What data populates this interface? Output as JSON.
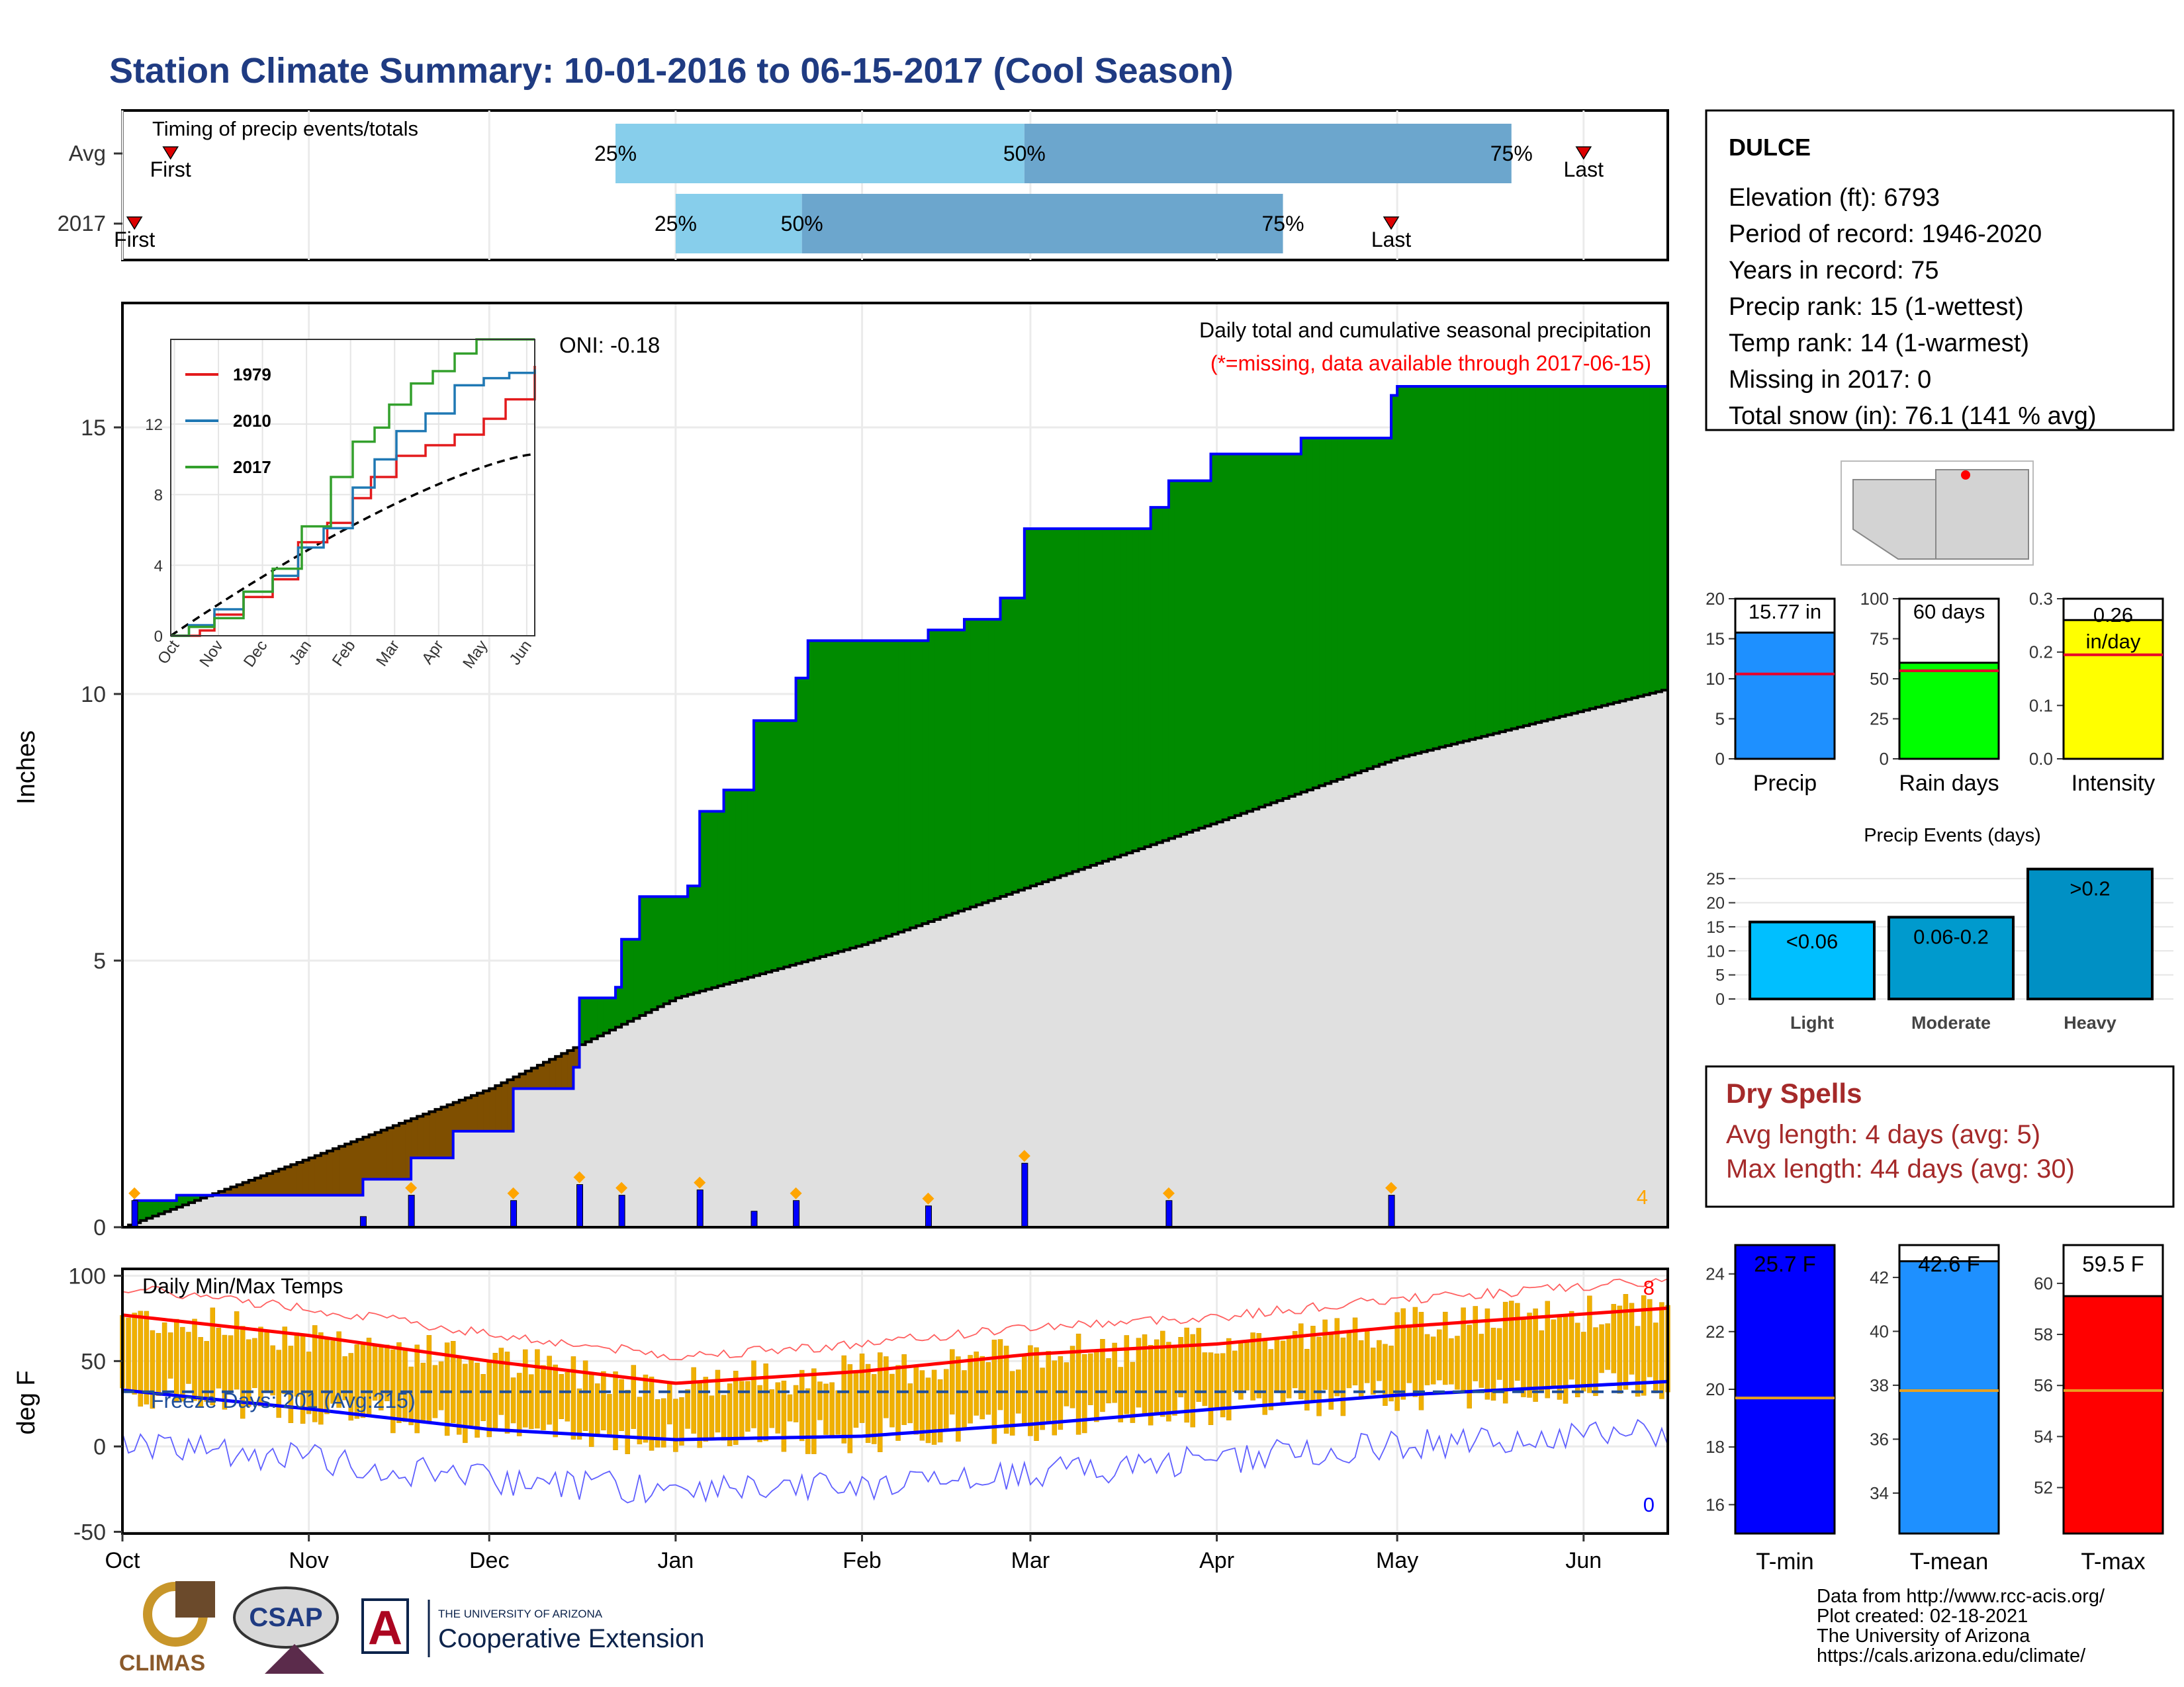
{
  "title": "Station Climate Summary: 10-01-2016 to 06-15-2017 (Cool Season)",
  "timing": {
    "label": "Timing of precip events/totals",
    "rows": [
      {
        "name": "Avg",
        "first_label": "First",
        "last_label": "Last",
        "q25": "25%",
        "q50": "50%",
        "q75": "75%",
        "first_doy": 8,
        "q25_doy": 82,
        "q50_doy": 150,
        "q75_doy": 231,
        "last_doy": 243
      },
      {
        "name": "2017",
        "first_label": "First",
        "last_label": "Last",
        "q25": "25%",
        "q50": "50%",
        "q75": "75%",
        "first_doy": 2,
        "q25_doy": 92,
        "q50_doy": 113,
        "q75_doy": 193,
        "last_doy": 211
      }
    ]
  },
  "precip_panel": {
    "ylabel": "Inches",
    "oni": "ONI: -0.18",
    "subtitle": "Daily total and cumulative seasonal precipitation",
    "missing_note": "(*=missing, data available through 2017-06-15)",
    "count_label": "4",
    "yticks": [
      "0",
      "5",
      "10",
      "15"
    ]
  },
  "inset": {
    "series": [
      {
        "name": "1979",
        "color": "#e31a1c"
      },
      {
        "name": "2010",
        "color": "#1f78b4"
      },
      {
        "name": "2017",
        "color": "#33a02c"
      }
    ],
    "yticks": [
      "0",
      "4",
      "8",
      "12"
    ],
    "xticks": [
      "Oct",
      "Nov",
      "Dec",
      "Jan",
      "Feb",
      "Mar",
      "Apr",
      "May",
      "Jun"
    ]
  },
  "temp_panel": {
    "ylabel": "deg F",
    "label": "Daily Min/Max Temps",
    "freeze": "Freeze Days: 201 (Avg:215)",
    "max_count": "8",
    "min_count": "0",
    "yticks": [
      "100",
      "50",
      "0",
      "-50"
    ]
  },
  "months": [
    "Oct",
    "Nov",
    "Dec",
    "Jan",
    "Feb",
    "Mar",
    "Apr",
    "May",
    "Jun"
  ],
  "station": {
    "name": "DULCE",
    "lines": [
      "Elevation (ft): 6793",
      "Period of record: 1946-2020",
      "Years in record: 75",
      "Precip rank: 15 (1-wettest)",
      "Temp rank: 14 (1-warmest)",
      "Missing in 2017: 0",
      "Total snow (in): 76.1 (141 % avg)"
    ]
  },
  "mini_bars": [
    {
      "name": "Precip",
      "value_label": "15.77 in",
      "value": 15.77,
      "avg": 10.6,
      "ymax": 20,
      "yticks": [
        "0",
        "5",
        "10",
        "15",
        "20"
      ],
      "color": "#1e90ff"
    },
    {
      "name": "Rain days",
      "value_label": "60 days",
      "value": 60,
      "avg": 55,
      "ymax": 100,
      "yticks": [
        "0",
        "25",
        "50",
        "75",
        "100"
      ],
      "color": "#00ff00"
    },
    {
      "name": "Intensity",
      "value_label": "0.26 in/day",
      "value": 0.26,
      "avg": 0.195,
      "ymax": 0.3,
      "yticks": [
        "0.0",
        "0.1",
        "0.2",
        "0.3"
      ],
      "color": "#ffff00"
    }
  ],
  "events": {
    "title": "Precip Events (days)",
    "yticks": [
      "0",
      "5",
      "10",
      "15",
      "20",
      "25"
    ],
    "bars": [
      {
        "name": "Light",
        "label": "<0.06",
        "value": 16,
        "color": "#00bfff"
      },
      {
        "name": "Moderate",
        "label": "0.06-0.2",
        "value": 17,
        "color": "#009acd"
      },
      {
        "name": "Heavy",
        "label": ">0.2",
        "value": 27,
        "color": "#0090c4"
      }
    ]
  },
  "dry_spells": {
    "title": "Dry Spells",
    "avg_length": "Avg length: 4 days (avg: 5)",
    "max_length": "Max length: 44 days (avg: 30)"
  },
  "temp_bars": [
    {
      "name": "T-min",
      "value_label": "25.7 F",
      "value": 25.7,
      "avg": 19.7,
      "ylim": [
        15,
        25
      ],
      "yticks": [
        "16",
        "18",
        "20",
        "22",
        "24"
      ],
      "color": "#0000ff"
    },
    {
      "name": "T-mean",
      "value_label": "42.6 F",
      "value": 42.6,
      "avg": 37.8,
      "ylim": [
        32.5,
        43.2
      ],
      "yticks": [
        "34",
        "36",
        "38",
        "40",
        "42"
      ],
      "color": "#1e90ff"
    },
    {
      "name": "T-max",
      "value_label": "59.5 F",
      "value": 59.5,
      "avg": 55.8,
      "ylim": [
        50.2,
        61.5
      ],
      "yticks": [
        "52",
        "54",
        "56",
        "58",
        "60"
      ],
      "color": "#ff0000"
    }
  ],
  "footer": {
    "lines": [
      "Data from http://www.rcc-acis.org/",
      "Plot created: 02-18-2021",
      "The University of Arizona",
      "https://cals.arizona.edu/climate/"
    ],
    "logo1": "CLIMAS",
    "logo2": "CSAP",
    "logo3_small": "THE UNIVERSITY OF ARIZONA",
    "logo3_big": "Cooperative Extension",
    "logo_a": "A"
  },
  "chart_data": {
    "type": "area",
    "x_range": [
      "2016-10-01",
      "2017-06-15"
    ],
    "cumulative_2017_in": [
      {
        "x": "2016-10-01",
        "y": 0.0
      },
      {
        "x": "2016-10-03",
        "y": 0.5
      },
      {
        "x": "2016-10-10",
        "y": 0.6
      },
      {
        "x": "2016-11-10",
        "y": 0.9
      },
      {
        "x": "2016-11-18",
        "y": 1.3
      },
      {
        "x": "2016-11-25",
        "y": 1.8
      },
      {
        "x": "2016-12-05",
        "y": 2.6
      },
      {
        "x": "2016-12-15",
        "y": 3.0
      },
      {
        "x": "2016-12-16",
        "y": 4.3
      },
      {
        "x": "2016-12-22",
        "y": 4.5
      },
      {
        "x": "2016-12-23",
        "y": 5.4
      },
      {
        "x": "2016-12-26",
        "y": 6.2
      },
      {
        "x": "2017-01-03",
        "y": 6.4
      },
      {
        "x": "2017-01-05",
        "y": 7.8
      },
      {
        "x": "2017-01-09",
        "y": 8.2
      },
      {
        "x": "2017-01-14",
        "y": 9.5
      },
      {
        "x": "2017-01-21",
        "y": 10.3
      },
      {
        "x": "2017-01-23",
        "y": 11.0
      },
      {
        "x": "2017-02-12",
        "y": 11.2
      },
      {
        "x": "2017-02-18",
        "y": 11.4
      },
      {
        "x": "2017-02-24",
        "y": 11.8
      },
      {
        "x": "2017-02-28",
        "y": 13.1
      },
      {
        "x": "2017-03-21",
        "y": 13.5
      },
      {
        "x": "2017-03-24",
        "y": 14.0
      },
      {
        "x": "2017-03-31",
        "y": 14.5
      },
      {
        "x": "2017-04-15",
        "y": 14.8
      },
      {
        "x": "2017-04-30",
        "y": 15.6
      },
      {
        "x": "2017-05-01",
        "y": 15.77
      },
      {
        "x": "2017-06-15",
        "y": 15.77
      }
    ],
    "cumulative_avg_in": [
      {
        "x": "2016-10-01",
        "y": 0.0
      },
      {
        "x": "2016-11-01",
        "y": 1.3
      },
      {
        "x": "2016-12-01",
        "y": 2.6
      },
      {
        "x": "2017-01-01",
        "y": 4.3
      },
      {
        "x": "2017-02-01",
        "y": 5.3
      },
      {
        "x": "2017-03-01",
        "y": 6.4
      },
      {
        "x": "2017-04-01",
        "y": 7.6
      },
      {
        "x": "2017-05-01",
        "y": 8.8
      },
      {
        "x": "2017-06-15",
        "y": 10.1
      }
    ],
    "daily_precip_in": [
      {
        "x": "2016-10-03",
        "y": 0.5
      },
      {
        "x": "2016-11-10",
        "y": 0.2
      },
      {
        "x": "2016-11-18",
        "y": 0.6
      },
      {
        "x": "2016-12-05",
        "y": 0.5
      },
      {
        "x": "2016-12-16",
        "y": 0.8
      },
      {
        "x": "2016-12-23",
        "y": 0.6
      },
      {
        "x": "2017-01-05",
        "y": 0.7
      },
      {
        "x": "2017-01-14",
        "y": 0.3
      },
      {
        "x": "2017-01-21",
        "y": 0.5
      },
      {
        "x": "2017-02-12",
        "y": 0.4
      },
      {
        "x": "2017-02-28",
        "y": 1.2
      },
      {
        "x": "2017-03-24",
        "y": 0.5
      },
      {
        "x": "2017-04-30",
        "y": 0.6
      }
    ],
    "temp_mean_max_F": [
      {
        "x": "2016-10-01",
        "y": 77
      },
      {
        "x": "2016-11-01",
        "y": 65
      },
      {
        "x": "2016-12-01",
        "y": 50
      },
      {
        "x": "2017-01-01",
        "y": 37
      },
      {
        "x": "2017-02-01",
        "y": 44
      },
      {
        "x": "2017-03-01",
        "y": 54
      },
      {
        "x": "2017-04-01",
        "y": 60
      },
      {
        "x": "2017-05-01",
        "y": 70
      },
      {
        "x": "2017-06-15",
        "y": 81
      }
    ],
    "temp_mean_min_F": [
      {
        "x": "2016-10-01",
        "y": 33
      },
      {
        "x": "2016-11-01",
        "y": 22
      },
      {
        "x": "2016-12-01",
        "y": 10
      },
      {
        "x": "2017-01-01",
        "y": 4
      },
      {
        "x": "2017-02-01",
        "y": 6
      },
      {
        "x": "2017-03-01",
        "y": 13
      },
      {
        "x": "2017-04-01",
        "y": 22
      },
      {
        "x": "2017-05-01",
        "y": 30
      },
      {
        "x": "2017-06-15",
        "y": 38
      }
    ]
  }
}
